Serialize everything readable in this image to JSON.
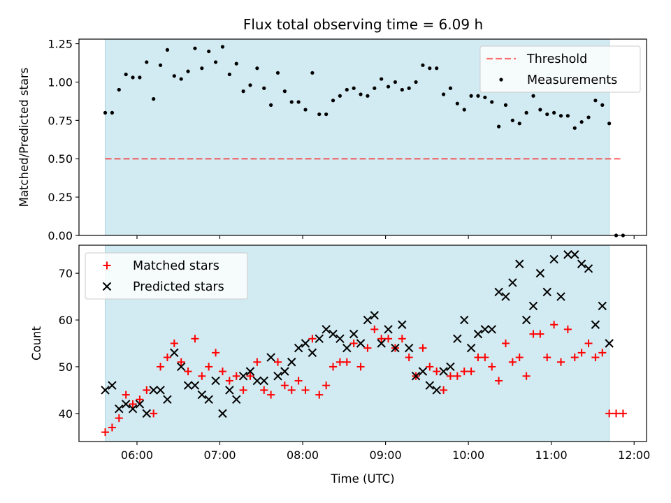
{
  "title": "Flux total observing time = 6.09 h",
  "colors": {
    "shade": "#add8e6",
    "threshold": "#ff0000",
    "measurements": "#000000",
    "matched": "#ff0000",
    "predicted": "#000000"
  },
  "chart_data": [
    {
      "type": "scatter",
      "ylabel": "Matched/Predicted stars",
      "ylim": [
        0,
        1.28
      ],
      "yticks": [
        "0.00",
        "0.25",
        "0.50",
        "0.75",
        "1.00",
        "1.25"
      ],
      "ytick_values": [
        0,
        0.25,
        0.5,
        0.75,
        1.0,
        1.25
      ],
      "shaded_span": [
        "05:37",
        "11:42"
      ],
      "threshold": 0.5,
      "legend": {
        "position": "top-right",
        "entries": [
          "Threshold",
          "Measurements"
        ]
      },
      "series": [
        {
          "name": "Measurements",
          "marker": "dot",
          "x": [
            "05:37",
            "05:42",
            "05:47",
            "05:52",
            "05:57",
            "06:02",
            "06:07",
            "06:12",
            "06:17",
            "06:22",
            "06:27",
            "06:32",
            "06:37",
            "06:42",
            "06:47",
            "06:52",
            "06:57",
            "07:02",
            "07:07",
            "07:12",
            "07:17",
            "07:22",
            "07:27",
            "07:32",
            "07:37",
            "07:42",
            "07:47",
            "07:52",
            "07:57",
            "08:02",
            "08:07",
            "08:12",
            "08:17",
            "08:22",
            "08:27",
            "08:32",
            "08:37",
            "08:42",
            "08:47",
            "08:52",
            "08:57",
            "09:02",
            "09:07",
            "09:12",
            "09:17",
            "09:22",
            "09:27",
            "09:32",
            "09:37",
            "09:42",
            "09:47",
            "09:52",
            "09:57",
            "10:02",
            "10:07",
            "10:12",
            "10:17",
            "10:22",
            "10:27",
            "10:32",
            "10:37",
            "10:42",
            "10:47",
            "10:52",
            "10:57",
            "11:02",
            "11:07",
            "11:12",
            "11:17",
            "11:22",
            "11:27",
            "11:32",
            "11:37",
            "11:42",
            "11:47",
            "11:52"
          ],
          "y": [
            0.8,
            0.8,
            0.95,
            1.05,
            1.03,
            1.03,
            1.13,
            0.89,
            1.11,
            1.21,
            1.04,
            1.02,
            1.07,
            1.22,
            1.09,
            1.2,
            1.13,
            1.23,
            1.05,
            1.12,
            0.94,
            0.98,
            1.09,
            0.96,
            0.85,
            1.06,
            0.94,
            0.87,
            0.87,
            0.82,
            1.06,
            0.79,
            0.79,
            0.88,
            0.91,
            0.95,
            0.96,
            0.92,
            0.91,
            0.96,
            1.02,
            0.97,
            1.0,
            0.95,
            0.96,
            1.0,
            1.11,
            1.09,
            1.09,
            0.92,
            0.96,
            0.86,
            0.82,
            0.91,
            0.91,
            0.9,
            0.87,
            0.71,
            0.85,
            0.75,
            0.73,
            0.8,
            0.91,
            0.82,
            0.79,
            0.8,
            0.78,
            0.78,
            0.7,
            0.74,
            0.77,
            0.88,
            0.85,
            0.73,
            0.0,
            0.0
          ]
        }
      ]
    },
    {
      "type": "scatter",
      "xlabel": "Time (UTC)",
      "ylabel": "Count",
      "ylim": [
        34,
        76
      ],
      "yticks": [
        "40",
        "50",
        "60",
        "70"
      ],
      "ytick_values": [
        40,
        50,
        60,
        70
      ],
      "xticks": [
        "06:00",
        "07:00",
        "08:00",
        "09:00",
        "10:00",
        "11:00",
        "12:00"
      ],
      "xtick_values": [
        "06:00",
        "07:00",
        "08:00",
        "09:00",
        "10:00",
        "11:00",
        "12:00"
      ],
      "xlim": [
        "05:18",
        "12:09"
      ],
      "shaded_span": [
        "05:37",
        "11:42"
      ],
      "legend": {
        "position": "top-left",
        "entries": [
          "Matched stars",
          "Predicted stars"
        ]
      },
      "x": [
        "05:37",
        "05:42",
        "05:47",
        "05:52",
        "05:57",
        "06:02",
        "06:07",
        "06:12",
        "06:17",
        "06:22",
        "06:27",
        "06:32",
        "06:37",
        "06:42",
        "06:47",
        "06:52",
        "06:57",
        "07:02",
        "07:07",
        "07:12",
        "07:17",
        "07:22",
        "07:27",
        "07:32",
        "07:37",
        "07:42",
        "07:47",
        "07:52",
        "07:57",
        "08:02",
        "08:07",
        "08:12",
        "08:17",
        "08:22",
        "08:27",
        "08:32",
        "08:37",
        "08:42",
        "08:47",
        "08:52",
        "08:57",
        "09:02",
        "09:07",
        "09:12",
        "09:17",
        "09:22",
        "09:27",
        "09:32",
        "09:37",
        "09:42",
        "09:47",
        "09:52",
        "09:57",
        "10:02",
        "10:07",
        "10:12",
        "10:17",
        "10:22",
        "10:27",
        "10:32",
        "10:37",
        "10:42",
        "10:47",
        "10:52",
        "10:57",
        "11:02",
        "11:07",
        "11:12",
        "11:17",
        "11:22",
        "11:27",
        "11:32",
        "11:37",
        "11:42",
        "11:47",
        "11:52"
      ],
      "series": [
        {
          "name": "Matched stars",
          "marker": "plus",
          "y": [
            36,
            37,
            39,
            44,
            42,
            43,
            45,
            40,
            50,
            52,
            55,
            51,
            49,
            56,
            48,
            50,
            53,
            49,
            47,
            48,
            45,
            48,
            51,
            45,
            44,
            51,
            46,
            45,
            47,
            45,
            56,
            44,
            46,
            50,
            51,
            51,
            55,
            50,
            54,
            58,
            56,
            56,
            54,
            56,
            52,
            48,
            54,
            50,
            49,
            45,
            48,
            48,
            49,
            49,
            52,
            52,
            50,
            47,
            55,
            51,
            52,
            48,
            57,
            57,
            52,
            59,
            51,
            58,
            52,
            53,
            55,
            52,
            53,
            40,
            40,
            40
          ]
        },
        {
          "name": "Predicted stars",
          "marker": "x",
          "y": [
            45,
            46,
            41,
            42,
            41,
            42,
            40,
            45,
            45,
            43,
            53,
            50,
            46,
            46,
            44,
            43,
            47,
            40,
            45,
            43,
            48,
            49,
            47,
            47,
            52,
            48,
            49,
            51,
            54,
            55,
            53,
            56,
            58,
            57,
            56,
            54,
            57,
            55,
            60,
            61,
            55,
            58,
            54,
            59,
            54,
            48,
            49,
            46,
            45,
            49,
            50,
            56,
            60,
            54,
            57,
            58,
            58,
            66,
            65,
            68,
            72,
            60,
            63,
            70,
            66,
            73,
            65,
            74,
            74,
            72,
            71,
            59,
            63,
            55,
            null,
            null
          ]
        }
      ]
    }
  ]
}
